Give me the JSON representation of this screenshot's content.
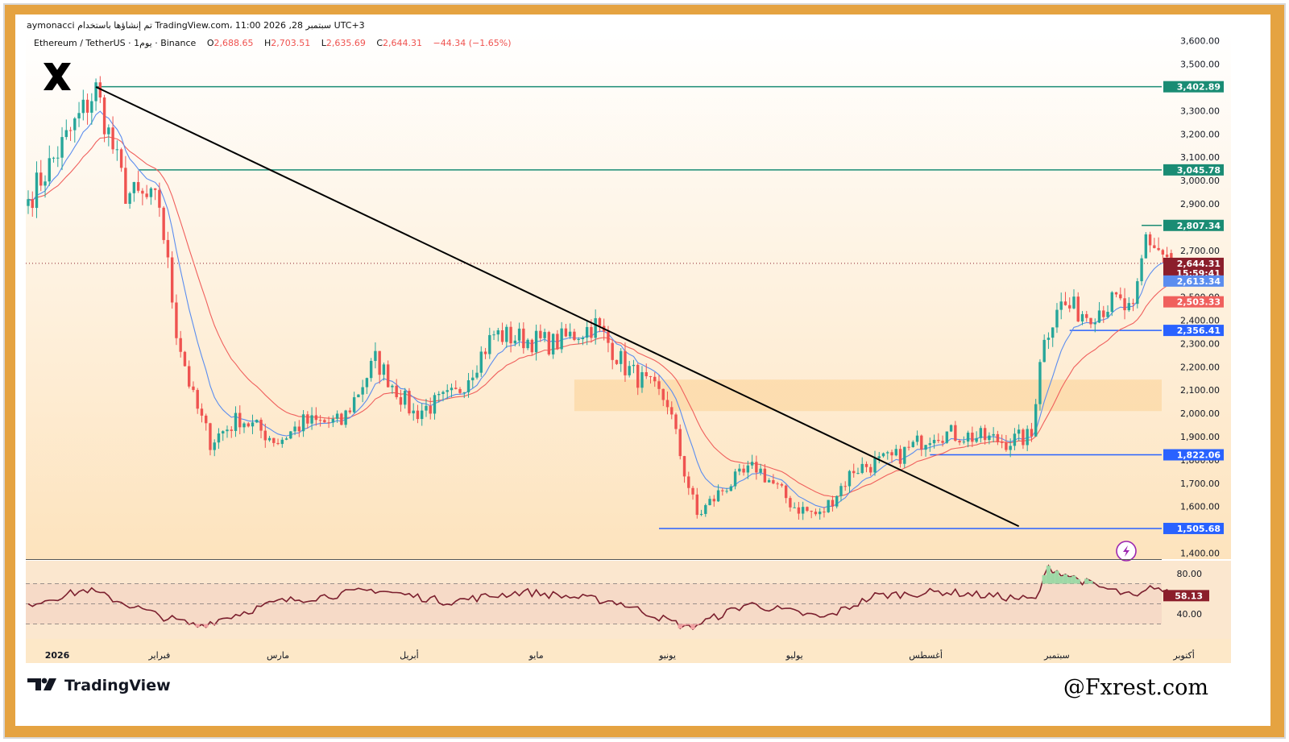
{
  "header": {
    "top_line": "aymonacci تم إنشاؤها باستخدام TradingView.com، 11:00 2026 ,28 سبتمبر UTC+3",
    "symbol": "Ethereum / TetherUS · 1يوم · Binance",
    "open_label": "O",
    "open": "2,688.65",
    "high_label": "H",
    "high": "2,703.51",
    "low_label": "L",
    "low": "2,635.69",
    "close_label": "C",
    "close": "2,644.31",
    "change": "−44.34 (−1.65%)"
  },
  "branding": {
    "logo_name": "TradingView",
    "watermark": "@Fxrest.com"
  },
  "colors": {
    "up": "#26a69a",
    "down": "#ef5350",
    "ema_fast": "#5b8def",
    "ema_slow": "#f0605d",
    "level_green": "#1a8c74",
    "level_blue": "#2962ff",
    "trendline": "#000000",
    "rsi_line": "#7b1f2e",
    "frame": "#e5a341"
  },
  "chart_data": {
    "type": "candlestick",
    "title": "Ethereum / TetherUS",
    "timeframe": "1D",
    "exchange": "Binance",
    "y_ticks": [
      "3,600.00",
      "3,500.00",
      "3,400.00",
      "3,300.00",
      "3,200.00",
      "3,100.00",
      "3,000.00",
      "2,900.00",
      "2,800.00",
      "2,700.00",
      "2,600.00",
      "2,500.00",
      "2,400.00",
      "2,300.00",
      "2,200.00",
      "2,100.00",
      "2,000.00",
      "1,900.00",
      "1,800.00",
      "1,700.00",
      "1,600.00",
      "1,500.00",
      "1,400.00"
    ],
    "x_ticks": [
      "2026",
      "فبراير",
      "مارس",
      "أبريل",
      "مايو",
      "يونيو",
      "يوليو",
      "أغسطس",
      "سبتمبر",
      "أكتوبر"
    ],
    "ylim": [
      1400,
      3620
    ],
    "last_price": "2,644.31",
    "countdown": "15:59:41",
    "ema_values": [
      {
        "name": "ema-fast",
        "value": "2,613.34"
      },
      {
        "name": "ema-slow",
        "value": "2,503.33"
      }
    ],
    "levels": [
      {
        "name": "level-3402",
        "value": 3402.89,
        "label": "3,402.89",
        "color": "green",
        "from_date": "2026-01-17"
      },
      {
        "name": "level-3045",
        "value": 3045.78,
        "label": "3,045.78",
        "color": "green",
        "from_date": "2026-01-27"
      },
      {
        "name": "level-2807",
        "value": 2807.34,
        "label": "2,807.34",
        "color": "green",
        "from_date": "2026-09-21"
      },
      {
        "name": "level-2356",
        "value": 2356.41,
        "label": "2,356.41",
        "color": "blue",
        "from_date": "2026-09-04"
      },
      {
        "name": "level-1822",
        "value": 1822.06,
        "label": "1,822.06",
        "color": "blue",
        "from_date": "2026-08-02"
      },
      {
        "name": "level-1505",
        "value": 1505.68,
        "label": "1,505.68",
        "color": "blue",
        "from_date": "2026-05-30"
      }
    ],
    "zone": {
      "from": 2010,
      "to": 2145,
      "from_date": "2026-05-10"
    },
    "trendline": {
      "start": {
        "date": "2026-01-17",
        "price": 3402
      },
      "end": {
        "date": "2026-08-23",
        "price": 1515
      }
    },
    "anchors": [
      {
        "date": "2026-01-01",
        "price": 2920
      },
      {
        "date": "2026-01-10",
        "price": 3180
      },
      {
        "date": "2026-01-17",
        "price": 3390
      },
      {
        "date": "2026-01-24",
        "price": 2950
      },
      {
        "date": "2026-02-01",
        "price": 2900
      },
      {
        "date": "2026-02-05",
        "price": 2360
      },
      {
        "date": "2026-02-09",
        "price": 2060
      },
      {
        "date": "2026-02-13",
        "price": 1880
      },
      {
        "date": "2026-02-20",
        "price": 1980
      },
      {
        "date": "2026-03-01",
        "price": 1880
      },
      {
        "date": "2026-03-07",
        "price": 1960
      },
      {
        "date": "2026-03-16",
        "price": 1960
      },
      {
        "date": "2026-03-24",
        "price": 2230
      },
      {
        "date": "2026-04-02",
        "price": 2000
      },
      {
        "date": "2026-04-12",
        "price": 2080
      },
      {
        "date": "2026-04-21",
        "price": 2340
      },
      {
        "date": "2026-05-05",
        "price": 2300
      },
      {
        "date": "2026-05-15",
        "price": 2380
      },
      {
        "date": "2026-05-22",
        "price": 2200
      },
      {
        "date": "2026-06-01",
        "price": 2050
      },
      {
        "date": "2026-06-05",
        "price": 1750
      },
      {
        "date": "2026-06-08",
        "price": 1560
      },
      {
        "date": "2026-06-15",
        "price": 1690
      },
      {
        "date": "2026-06-22",
        "price": 1770
      },
      {
        "date": "2026-07-01",
        "price": 1600
      },
      {
        "date": "2026-07-07",
        "price": 1560
      },
      {
        "date": "2026-07-15",
        "price": 1760
      },
      {
        "date": "2026-07-25",
        "price": 1810
      },
      {
        "date": "2026-08-03",
        "price": 1920
      },
      {
        "date": "2026-08-12",
        "price": 1900
      },
      {
        "date": "2026-08-20",
        "price": 1880
      },
      {
        "date": "2026-08-26",
        "price": 1900
      },
      {
        "date": "2026-08-28",
        "price": 2250
      },
      {
        "date": "2026-09-01",
        "price": 2470
      },
      {
        "date": "2026-09-08",
        "price": 2430
      },
      {
        "date": "2026-09-15",
        "price": 2480
      },
      {
        "date": "2026-09-19",
        "price": 2420
      },
      {
        "date": "2026-09-22",
        "price": 2760
      },
      {
        "date": "2026-09-28",
        "price": 2644
      }
    ],
    "rsi": {
      "value": "58.13",
      "levels": [
        70,
        50,
        30
      ],
      "ticks": [
        "80.00",
        "40.00"
      ],
      "ylim": [
        20,
        90
      ],
      "anchors": [
        {
          "date": "2026-01-01",
          "value": 50
        },
        {
          "date": "2026-01-15",
          "value": 64
        },
        {
          "date": "2026-02-01",
          "value": 38
        },
        {
          "date": "2026-02-10",
          "value": 28
        },
        {
          "date": "2026-03-01",
          "value": 52
        },
        {
          "date": "2026-03-24",
          "value": 64
        },
        {
          "date": "2026-04-10",
          "value": 52
        },
        {
          "date": "2026-04-28",
          "value": 62
        },
        {
          "date": "2026-05-20",
          "value": 52
        },
        {
          "date": "2026-06-06",
          "value": 26
        },
        {
          "date": "2026-06-20",
          "value": 50
        },
        {
          "date": "2026-07-08",
          "value": 36
        },
        {
          "date": "2026-07-20",
          "value": 58
        },
        {
          "date": "2026-08-05",
          "value": 62
        },
        {
          "date": "2026-08-27",
          "value": 54
        },
        {
          "date": "2026-08-30",
          "value": 86
        },
        {
          "date": "2026-09-10",
          "value": 68
        },
        {
          "date": "2026-09-20",
          "value": 56
        },
        {
          "date": "2026-09-24",
          "value": 68
        },
        {
          "date": "2026-09-28",
          "value": 58
        }
      ]
    }
  }
}
